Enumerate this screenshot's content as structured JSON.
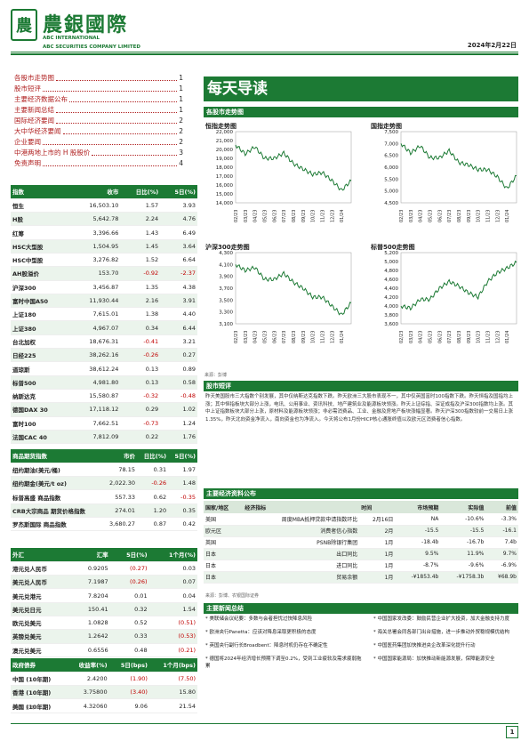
{
  "brand": {
    "cn": "農銀國際",
    "en1": "ABC INTERNATIONAL",
    "en2": "ABC SECURITIES COMPANY LIMITED",
    "logo": "農"
  },
  "date": "2024年2月22日",
  "toc": [
    {
      "label": "各股市走势图",
      "page": "1"
    },
    {
      "label": "股市短评",
      "page": "1"
    },
    {
      "label": "主要经济数据公布",
      "page": "1"
    },
    {
      "label": "主要新闻总结",
      "page": "1"
    },
    {
      "label": "国际经济要闻",
      "page": "2"
    },
    {
      "label": "大中华经济要闻",
      "page": "2"
    },
    {
      "label": "企业要闻",
      "page": "2"
    },
    {
      "label": "中港两地上市的 H 股股价",
      "page": "3"
    },
    {
      "label": "免责声明",
      "page": "4"
    }
  ],
  "title": "每天导读",
  "charts_heading": "各股市走势图",
  "source_charts": "来源：彭博",
  "indices": {
    "headers": [
      "指数",
      "收市",
      "日比(%)",
      "5日(%)"
    ],
    "rows": [
      [
        "恒生",
        "16,503.10",
        "1.57",
        "3.93"
      ],
      [
        "H股",
        "5,642.78",
        "2.24",
        "4.76"
      ],
      [
        "红筹",
        "3,396.66",
        "1.43",
        "6.49"
      ],
      [
        "HSC大型股",
        "1,504.95",
        "1.45",
        "3.64"
      ],
      [
        "HSC中型股",
        "3,276.82",
        "1.52",
        "6.64"
      ],
      [
        "AH股溢价",
        "153.70",
        "-0.92",
        "-2.37"
      ],
      [
        "沪深300",
        "3,456.87",
        "1.35",
        "4.38"
      ],
      [
        "富时中国A50",
        "11,930.44",
        "2.16",
        "3.91"
      ],
      [
        "上证180",
        "7,615.01",
        "1.38",
        "4.40"
      ],
      [
        "上证380",
        "4,967.07",
        "0.34",
        "6.44"
      ],
      [
        "台北加权",
        "18,676.31",
        "-0.41",
        "3.21"
      ],
      [
        "日经225",
        "38,262.16",
        "-0.26",
        "0.27"
      ],
      [
        "道琼斯",
        "38,612.24",
        "0.13",
        "0.89"
      ],
      [
        "标普500",
        "4,981.80",
        "0.13",
        "0.58"
      ],
      [
        "纳斯达克",
        "15,580.87",
        "-0.32",
        "-0.48"
      ],
      [
        "德国DAX 30",
        "17,118.12",
        "0.29",
        "1.02"
      ],
      [
        "富时100",
        "7,662.51",
        "-0.73",
        "1.24"
      ],
      [
        "法国CAC 40",
        "7,812.09",
        "0.22",
        "1.76"
      ]
    ]
  },
  "commodities": {
    "headers": [
      "商品期货指数",
      "市价",
      "日比(%)",
      "5日(%)"
    ],
    "rows": [
      [
        "纽约期油(美元/桶)",
        "78.15",
        "0.31",
        "1.97"
      ],
      [
        "纽约期金(美元/t oz)",
        "2,022.30",
        "-0.26",
        "1.48"
      ],
      [
        "标普高盛 商品指数",
        "557.33",
        "0.62",
        "-0.35"
      ],
      [
        "CRB大宗商品 期货价格指数",
        "274.01",
        "1.20",
        "0.35"
      ],
      [
        "罗杰斯国际 商品指数",
        "3,680.27",
        "0.87",
        "0.42"
      ]
    ]
  },
  "fx": {
    "headers": [
      "外汇",
      "汇率",
      "5日(%)",
      "1个月(%)"
    ],
    "rows": [
      [
        "港元兑人民币",
        "0.9205",
        "(0.27)",
        "0.03"
      ],
      [
        "美元兑人民币",
        "7.1987",
        "(0.26)",
        "0.07"
      ],
      [
        "美元兑港元",
        "7.8204",
        "0.01",
        "0.04"
      ],
      [
        "美元兑日元",
        "150.41",
        "0.32",
        "1.54"
      ],
      [
        "欧元兑美元",
        "1.0828",
        "0.52",
        "(0.51)"
      ],
      [
        "英镑兑美元",
        "1.2642",
        "0.33",
        "(0.53)"
      ],
      [
        "澳元兑美元",
        "0.6556",
        "0.48",
        "(0.21)"
      ]
    ]
  },
  "bonds": {
    "headers": [
      "政府债券",
      "收益率(%)",
      "5日(bps)",
      "1个月(bps)"
    ],
    "rows": [
      [
        "中国 (10年期)",
        "2.4200",
        "(1.90)",
        "(7.50)"
      ],
      [
        "香港 (10年期)",
        "3.75800",
        "(3.40)",
        "15.80"
      ],
      [
        "美国 (10年期)",
        "4.32060",
        "9.06",
        "21.54"
      ]
    ]
  },
  "source_tables": "来源：彭博",
  "charts": [
    {
      "title": "恒指走势图",
      "ylim": [
        14000,
        22000
      ],
      "yticks": [
        "22,000",
        "21,000",
        "20,000",
        "19,000",
        "18,000",
        "17,000",
        "16,000",
        "15,000",
        "14,000"
      ]
    },
    {
      "title": "国指走势图",
      "ylim": [
        4500,
        7500
      ],
      "yticks": [
        "7,500",
        "7,000",
        "6,500",
        "6,000",
        "5,500",
        "5,000",
        "4,500"
      ]
    },
    {
      "title": "沪深300走势图",
      "ylim": [
        3100,
        4300
      ],
      "yticks": [
        "4,300",
        "4,100",
        "3,900",
        "3,700",
        "3,500",
        "3,300",
        "3,100"
      ]
    },
    {
      "title": "标普500走势图",
      "ylim": [
        3600,
        5200
      ],
      "yticks": [
        "5,200",
        "5,000",
        "4,800",
        "4,600",
        "4,400",
        "4,200",
        "4,000",
        "3,800",
        "3,600"
      ]
    }
  ],
  "xticks": [
    "02/23",
    "03/23",
    "04/23",
    "05/23",
    "06/23",
    "07/23",
    "08/23",
    "09/23",
    "10/23",
    "11/23",
    "12/23",
    "01/24"
  ],
  "chart_data": [
    {
      "type": "line",
      "title": "恒指走势图",
      "x": [
        "02/23",
        "03/23",
        "04/23",
        "05/23",
        "06/23",
        "07/23",
        "08/23",
        "09/23",
        "10/23",
        "11/23",
        "12/23",
        "01/24",
        "02/24"
      ],
      "values": [
        20500,
        19500,
        20300,
        19000,
        19000,
        19600,
        18400,
        17800,
        17200,
        17400,
        16500,
        15400,
        16500
      ],
      "ylim": [
        14000,
        22000
      ]
    },
    {
      "type": "line",
      "title": "国指走势图",
      "x": [
        "02/23",
        "03/23",
        "04/23",
        "05/23",
        "06/23",
        "07/23",
        "08/23",
        "09/23",
        "10/23",
        "11/23",
        "12/23",
        "01/24",
        "02/24"
      ],
      "values": [
        7000,
        6600,
        6900,
        6400,
        6400,
        6700,
        6200,
        6100,
        5900,
        5900,
        5600,
        5100,
        5640
      ],
      "ylim": [
        4500,
        7500
      ]
    },
    {
      "type": "line",
      "title": "沪深300走势图",
      "x": [
        "02/23",
        "03/23",
        "04/23",
        "05/23",
        "06/23",
        "07/23",
        "08/23",
        "09/23",
        "10/23",
        "11/23",
        "12/23",
        "01/24",
        "02/24"
      ],
      "values": [
        4100,
        4000,
        4050,
        3850,
        3850,
        3950,
        3800,
        3700,
        3550,
        3550,
        3400,
        3250,
        3456
      ],
      "ylim": [
        3100,
        4300
      ]
    },
    {
      "type": "line",
      "title": "标普500走势图",
      "x": [
        "02/23",
        "03/23",
        "04/23",
        "05/23",
        "06/23",
        "07/23",
        "08/23",
        "09/23",
        "10/23",
        "11/23",
        "12/23",
        "01/24",
        "02/24"
      ],
      "values": [
        4000,
        3950,
        4150,
        4150,
        4400,
        4550,
        4450,
        4300,
        4200,
        4550,
        4750,
        4850,
        4980
      ],
      "ylim": [
        3600,
        5200
      ]
    }
  ],
  "commentary": {
    "heading": "股市短评",
    "text": "昨天美国股市三大指数个别发展，其中仅纳斯达克指数下跌。昨天欧洲三大股市表现不一，其中仅英国富时100指数下跌。昨天恒指及国指均上涨；其中恒指板块大部分上涨，电讯、公用事业、资讯科技、地产建筑业及能源板块领涨。昨天上证综指、深证成指及沪深300指数均上涨。其中上证指数板块大部分上涨，原材料及能源板块领涨；非必需消费品、工业、金融及房地产板块涨幅显著。昨天沪深300指数较前一交易日上涨1.35%，昨天北向资金净流入，南向资金也为净流入。今天将公布1月份HICP核心通胀终值以及欧元区消费者信心指数。"
  },
  "econ": {
    "heading": "主要经济资料公布",
    "headers": [
      "国家/地区",
      "经济指标",
      "时间",
      "市场预期",
      "实际值",
      "前值"
    ],
    "rows": [
      [
        "美国",
        "周度MBA抵押贷款申请指数环比",
        "2月16日",
        "NA",
        "-10.6%",
        "-3.3%"
      ],
      [
        "欧元区",
        "消费者信心指数",
        "2月",
        "-15.5",
        "-15.5",
        "-16.1"
      ],
      [
        "英国",
        "PSNB除银行集团",
        "1月",
        "-18.4b",
        "-16.7b",
        "7.4b"
      ],
      [
        "日本",
        "出口同比",
        "1月",
        "9.5%",
        "11.9%",
        "9.7%"
      ],
      [
        "日本",
        "进口同比",
        "1月",
        "-8.7%",
        "-9.6%",
        "-6.9%"
      ],
      [
        "日本",
        "贸易余额",
        "1月",
        "-¥1853.4b",
        "-¥1758.3b",
        "¥68.9b"
      ]
    ],
    "source": "来源：彭博、农银国际证券"
  },
  "news": {
    "heading": "主要新闻总结",
    "left": [
      "美联储会议纪要：多数与会者担忧过快降息风险",
      "欧洲央行Panetta：应该对降息采取更积极的态度",
      "英国央行副行长Broadbent：降息时机仍存在不确定性",
      "德国将2024年经济增长预期下调至0.2%，受到工业疲软及需求疲弱拖累"
    ],
    "right": [
      "中国国家发改委：鼓励民营企业扩大投资，加大金融支持力度",
      "海关总署会同各部门出台措施，进一步推动外贸稳规模优结构",
      "中国医药集团加快推进央企改革深化提升行动",
      "中国国家能源局：加快推动新能源发展，保障能源安全"
    ]
  },
  "page": "1"
}
